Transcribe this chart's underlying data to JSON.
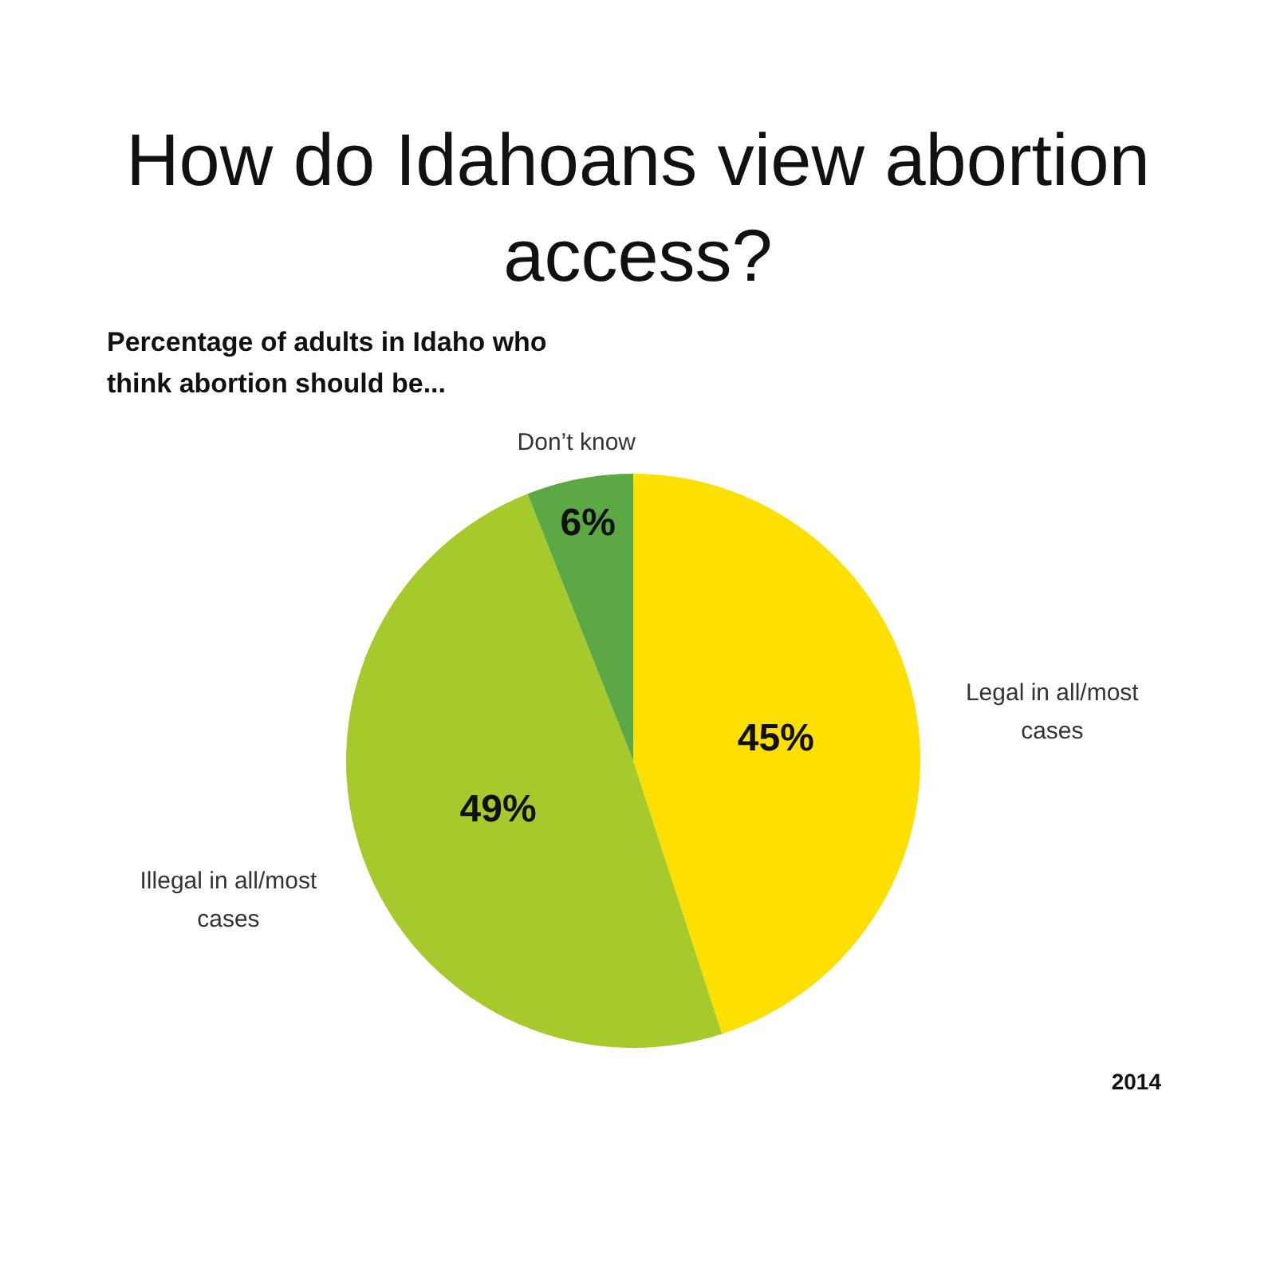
{
  "chart_data": {
    "type": "pie",
    "title": "How do Idahoans view abortion access?",
    "subtitle": "Percentage of adults in Idaho who think abortion should be...",
    "categories": [
      "Legal in all/most cases",
      "Illegal in all/most cases",
      "Don’t know"
    ],
    "values": [
      45,
      49,
      6
    ],
    "colors": [
      "#fde000",
      "#a6c92b",
      "#5ca845"
    ],
    "value_labels": [
      "45%",
      "49%",
      "6%"
    ],
    "annotations": [
      "2014"
    ]
  }
}
